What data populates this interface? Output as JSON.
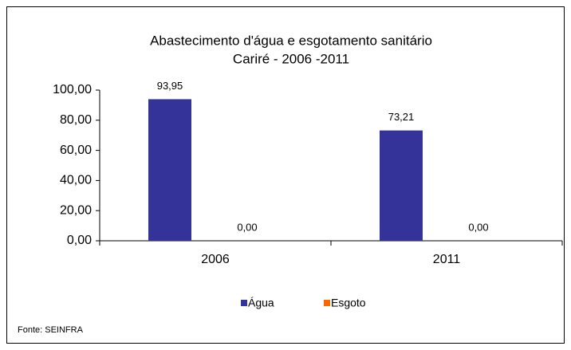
{
  "chart_data": {
    "type": "bar",
    "title": "Abastecimento d'água e esgotamento sanitário",
    "subtitle": "Cariré - 2006 -2011",
    "categories": [
      "2006",
      "2011"
    ],
    "series": [
      {
        "name": "Água",
        "color": "#333399",
        "values": [
          93.95,
          73.21
        ],
        "value_labels": [
          "93,95",
          "73,21"
        ]
      },
      {
        "name": "Esgoto",
        "color": "#ff6600",
        "values": [
          0,
          0
        ],
        "value_labels": [
          "0,00",
          "0,00"
        ]
      }
    ],
    "ylim": [
      0,
      100
    ],
    "yticks": [
      {
        "value": 0,
        "label": "0,00"
      },
      {
        "value": 20,
        "label": "20,00"
      },
      {
        "value": 40,
        "label": "40,00"
      },
      {
        "value": 60,
        "label": "60,00"
      },
      {
        "value": 80,
        "label": "80,00"
      },
      {
        "value": 100,
        "label": "100,00"
      }
    ],
    "legend": "bottom",
    "source": "Fonte: SEINFRA"
  }
}
